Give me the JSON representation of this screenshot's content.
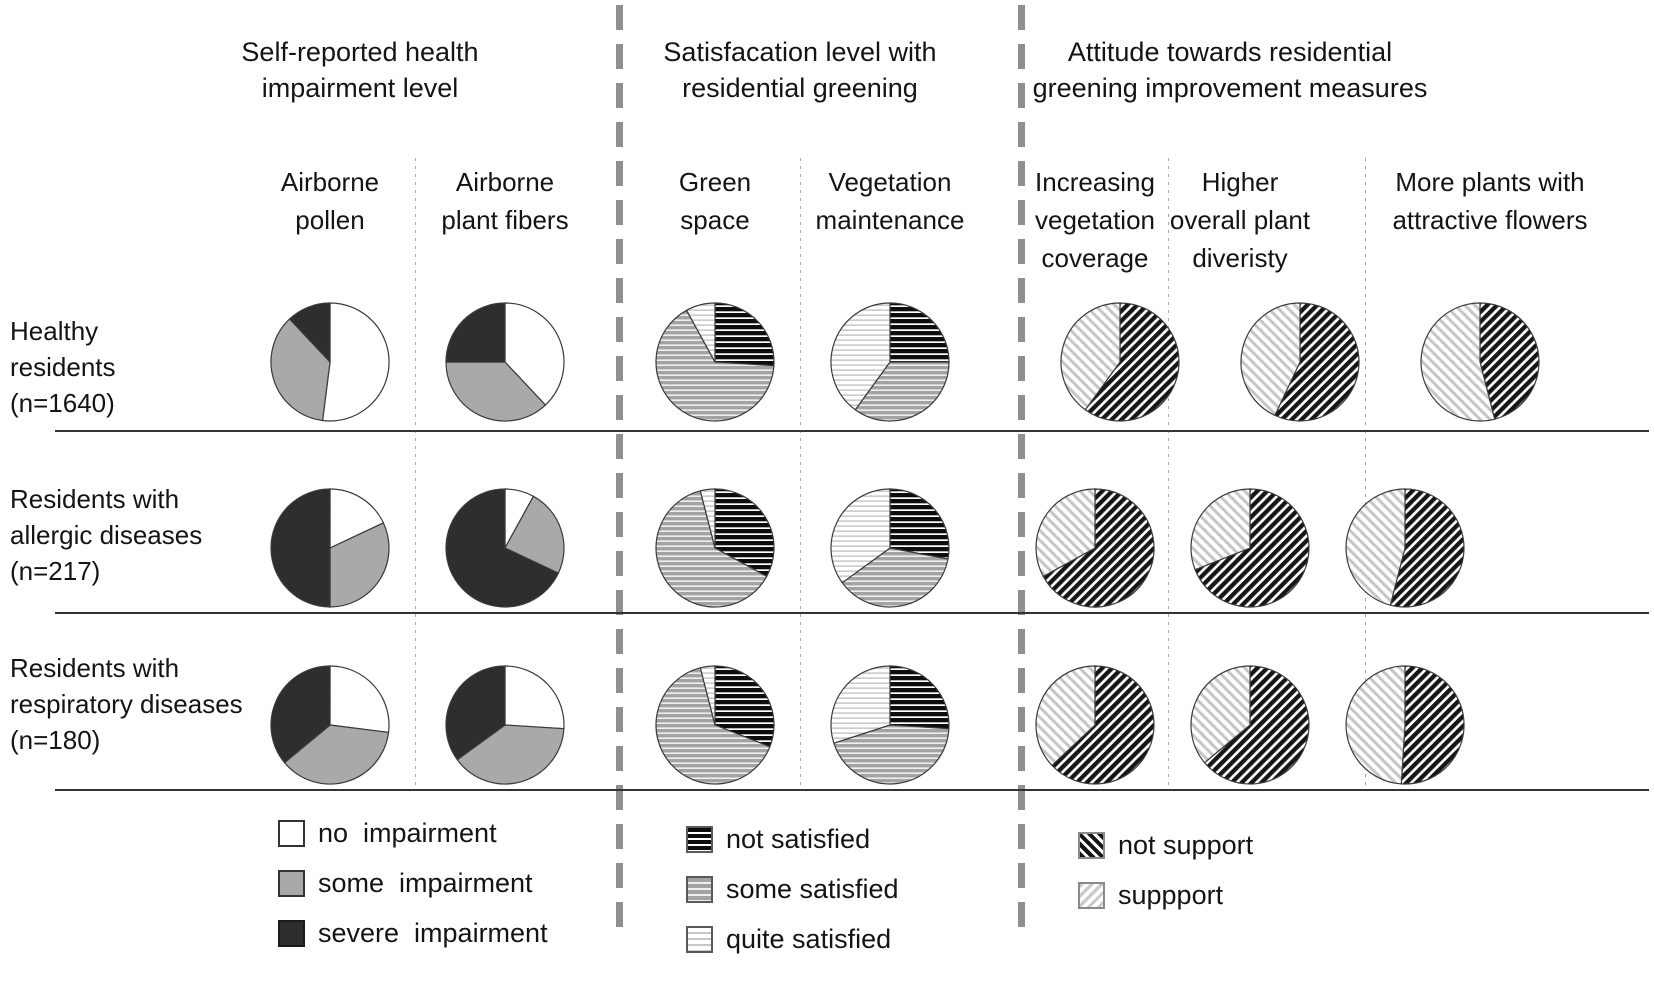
{
  "chart_data": {
    "type": "pie",
    "layout_note": "grid of pies: 3 resident rows x 7 topic columns, grouped into 3 sections; slices start at 12 o'clock, clockwise",
    "groups": [
      {
        "title": "Self-reported health\nimpairment level",
        "columns": [
          "Airborne\npollen",
          "Airborne\nplant fibers"
        ],
        "categories": [
          "no impairment",
          "some impairment",
          "severe impairment"
        ],
        "patterns": [
          "solid-white",
          "solid-gray",
          "solid-dark"
        ]
      },
      {
        "title": "Satisfacation level with\nresidential greening",
        "columns": [
          "Green\nspace",
          "Vegetation\nmaintenance"
        ],
        "categories": [
          "not satisfied",
          "some satisfied",
          "quite satisfied"
        ],
        "patterns": [
          "hstripe-black",
          "hstripe-gray",
          "hstripe-light"
        ]
      },
      {
        "title": "Attitude towards residential\ngreening improvement measures",
        "columns": [
          "Increasing\nvegetation\ncoverage",
          "Higher\noverall plant\ndiveristy",
          "More plants with\nattractive flowers"
        ],
        "categories": [
          "not support",
          "support"
        ],
        "patterns": [
          "hatch-dark",
          "hatch-light"
        ]
      }
    ],
    "rows": [
      {
        "label": "Healthy\nresidents\n(n=1640)",
        "values_percent": [
          [
            52,
            36,
            12
          ],
          [
            38,
            37,
            25
          ],
          [
            26,
            66,
            8
          ],
          [
            25,
            35,
            40
          ],
          [
            60,
            40
          ],
          [
            57,
            43
          ],
          [
            46,
            54
          ]
        ]
      },
      {
        "label": "Residents with\nallergic diseases\n(n=217)",
        "values_percent": [
          [
            18,
            32,
            50
          ],
          [
            8,
            24,
            68
          ],
          [
            33,
            63,
            4
          ],
          [
            28,
            37,
            35
          ],
          [
            67,
            33
          ],
          [
            69,
            31
          ],
          [
            54,
            46
          ]
        ]
      },
      {
        "label": "Residents with\nrespiratory diseases\n(n=180)",
        "values_percent": [
          [
            27,
            37,
            36
          ],
          [
            26,
            39,
            35
          ],
          [
            31,
            65,
            4
          ],
          [
            26,
            44,
            30
          ],
          [
            63,
            37
          ],
          [
            64,
            36
          ],
          [
            51,
            49
          ]
        ]
      }
    ],
    "legends": [
      {
        "entries": [
          {
            "label": "no  impairment",
            "pattern": "solid-white"
          },
          {
            "label": "some  impairment",
            "pattern": "solid-gray"
          },
          {
            "label": "severe  impairment",
            "pattern": "solid-dark"
          }
        ]
      },
      {
        "entries": [
          {
            "label": "not satisfied",
            "pattern": "hstripe-black"
          },
          {
            "label": "some satisfied",
            "pattern": "hstripe-gray"
          },
          {
            "label": "quite satisfied",
            "pattern": "hstripe-light"
          }
        ]
      },
      {
        "entries": [
          {
            "label": "not support",
            "pattern": "hatch-dark"
          },
          {
            "label": "suppport",
            "pattern": "hatch-light"
          }
        ]
      }
    ],
    "colors": {
      "white": "#ffffff",
      "gray": "#a9a9a9",
      "dark": "#2e2e2e",
      "wedge_outline": "#3a3a3a"
    }
  }
}
